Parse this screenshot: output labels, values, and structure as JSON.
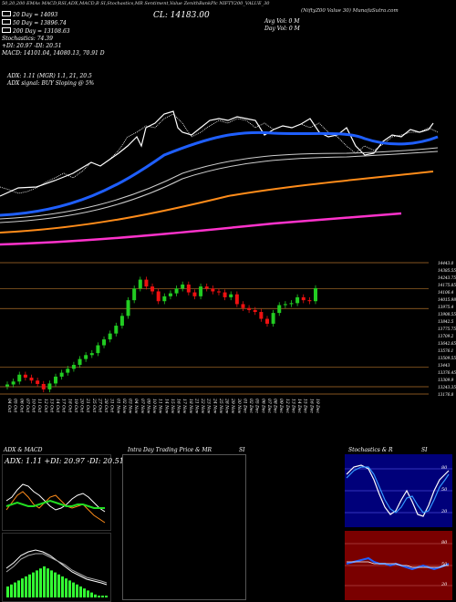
{
  "header": {
    "line1": "50,20,200 EMAs MACD,RSI,ADX,MACD,B SI,Stochastics,MR Sentiment,Value ZenithBankPlc NIFTY200_VALUE_30",
    "title": "CL: 14183.00",
    "watermark": "(NiftyZ00 Value 30) MunafaSutra.com"
  },
  "info_left": [
    {
      "color": "#ffffff",
      "text": "20 Day = 14093"
    },
    {
      "color": "#ffffff",
      "text": "50 Day = 13896.74"
    },
    {
      "color": "#ffffff",
      "text": "200 Day = 13108.63"
    },
    {
      "color": null,
      "text": "Stochastics: 74.39"
    },
    {
      "color": null,
      "text": "+DI: 20.97 -DI: 20.51"
    },
    {
      "color": null,
      "text": "MACD: 14101.04, 14080.13, 70.91 D"
    }
  ],
  "info_right": [
    "Avg Vol: 0   M",
    "Day Vol: 0   M"
  ],
  "adx_line": "ADX: 1.11   (MGR) 1.1, 21, 20.5",
  "adx_signal": "ADX signal:   BUY Sloping @ 5%",
  "price_labels": [
    "14443.0",
    "14385.55",
    "14243.75",
    "14175.85",
    "14106.4",
    "14015.98",
    "13975.4",
    "13908.55",
    "13842.5",
    "13775.75",
    "13709.2",
    "13642.65",
    "13576.1",
    "13509.55",
    "13443",
    "13376.45",
    "13309.9",
    "13243.35",
    "13176.8"
  ],
  "dates": [
    "04 Oct",
    "05 Oct",
    "06 Oct",
    "07 Oct",
    "10 Oct",
    "11 Oct",
    "12 Oct",
    "13 Oct",
    "14 Oct",
    "17 Oct",
    "18 Oct",
    "19 Oct",
    "20 Oct",
    "21 Oct",
    "25 Oct",
    "27 Oct",
    "28 Oct",
    "31 Oct",
    "01 Nov",
    "02 Nov",
    "03 Nov",
    "04 Nov",
    "07 Nov",
    "09 Nov",
    "10 Nov",
    "11 Nov",
    "14 Nov",
    "15 Nov",
    "16 Nov",
    "17 Nov",
    "18 Nov",
    "21 Nov",
    "22 Nov",
    "23 Nov",
    "24 Nov",
    "25 Nov",
    "28 Nov",
    "29 Nov",
    "30 Nov",
    "01 Dec",
    "02 Dec",
    "05 Dec",
    "06 Dec",
    "07 Dec",
    "08 Dec",
    "09 Dec",
    "12 Dec",
    "13 Dec",
    "14 Dec",
    "15 Dec",
    "16 Dec",
    "19 Dec"
  ],
  "panels": {
    "adx_macd": {
      "title": "ADX  & MACD",
      "readout": "ADX: 1.11 +DI: 20.97 -DI: 20.51"
    },
    "intraday": {
      "title": "Intra  Day Trading Price  & MR",
      "tag": "SI"
    },
    "stoch": {
      "title": "Stochastics & R",
      "tag": "SI",
      "levels": [
        "80",
        "50",
        "20"
      ]
    },
    "rsi": {
      "levels": [
        "80",
        "50",
        "20"
      ]
    }
  },
  "colors": {
    "ema20": "#ffffff",
    "ema50": "#1f5fff",
    "ema200": "#ff8c1a",
    "ema_long": "#ff33cc",
    "bull": "#22cc22",
    "bear": "#ee1111",
    "stoch_bg": "#00007a",
    "rsi_bg": "#7a0000"
  },
  "chart_data": {
    "type": "candlestick",
    "series": [
      {
        "name": "CL",
        "values": [
          13200,
          13230,
          13300,
          13270,
          13240,
          13205,
          13150,
          13210,
          13280,
          13320,
          13360,
          13400,
          13460,
          13500,
          13520,
          13600,
          13660,
          13720,
          13800,
          13900,
          14060,
          14180,
          14270,
          14200,
          14150,
          14050,
          14100,
          14130,
          14180,
          14220,
          14140,
          14100,
          14200,
          14180,
          14150,
          14140,
          14090,
          14120,
          14020,
          13980,
          13960,
          13940,
          13870,
          13820,
          13930,
          14010,
          14020,
          14030,
          14090,
          14060,
          14050,
          14183
        ]
      }
    ],
    "categories": [
      "04 Oct",
      "05 Oct",
      "06 Oct",
      "07 Oct",
      "10 Oct",
      "11 Oct",
      "12 Oct",
      "13 Oct",
      "14 Oct",
      "17 Oct",
      "18 Oct",
      "19 Oct",
      "20 Oct",
      "21 Oct",
      "25 Oct",
      "27 Oct",
      "28 Oct",
      "31 Oct",
      "01 Nov",
      "02 Nov",
      "03 Nov",
      "04 Nov",
      "07 Nov",
      "09 Nov",
      "10 Nov",
      "11 Nov",
      "14 Nov",
      "15 Nov",
      "16 Nov",
      "17 Nov",
      "18 Nov",
      "21 Nov",
      "22 Nov",
      "23 Nov",
      "24 Nov",
      "25 Nov",
      "28 Nov",
      "29 Nov",
      "30 Nov",
      "01 Dec",
      "02 Dec",
      "05 Dec",
      "06 Dec",
      "07 Dec",
      "08 Dec",
      "09 Dec",
      "12 Dec",
      "13 Dec",
      "14 Dec",
      "15 Dec",
      "16 Dec",
      "19 Dec"
    ],
    "ylim": [
      13176.8,
      14443.0
    ]
  }
}
